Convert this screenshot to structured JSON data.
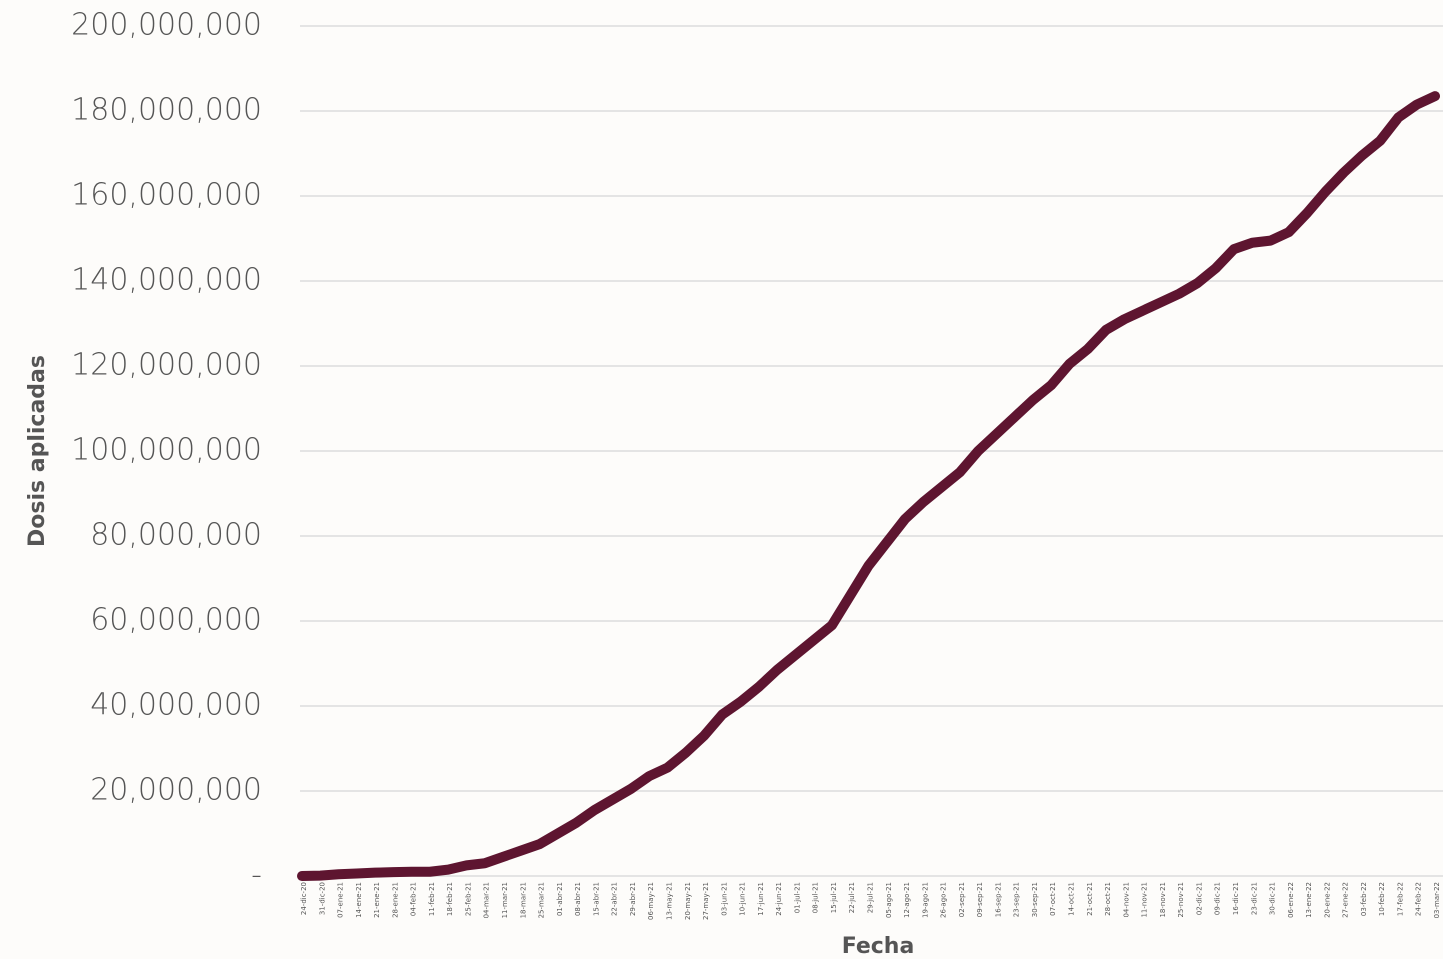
{
  "chart_data": {
    "type": "line",
    "y_axis_label": "Dosis aplicadas",
    "x_axis_label": "Fecha",
    "color": "#5e1530",
    "grid": true,
    "categories": [
      "24-dic-20",
      "31-dic-20",
      "07-ene-21",
      "14-ene-21",
      "21-ene-21",
      "28-ene-21",
      "04-feb-21",
      "11-feb-21",
      "18-feb-21",
      "25-feb-21",
      "04-mar-21",
      "11-mar-21",
      "18-mar-21",
      "25-mar-21",
      "01-abr-21",
      "08-abr-21",
      "15-abr-21",
      "22-abr-21",
      "29-abr-21",
      "06-may-21",
      "13-may-21",
      "20-may-21",
      "27-may-21",
      "03-jun-21",
      "10-jun-21",
      "17-jun-21",
      "24-jun-21",
      "01-jul-21",
      "08-jul-21",
      "15-jul-21",
      "22-jul-21",
      "29-jul-21",
      "05-ago-21",
      "12-ago-21",
      "19-ago-21",
      "26-ago-21",
      "02-sep-21",
      "09-sep-21",
      "16-sep-21",
      "23-sep-21",
      "30-sep-21",
      "07-oct-21",
      "14-oct-21",
      "21-oct-21",
      "28-oct-21",
      "04-nov-21",
      "11-nov-21",
      "18-nov-21",
      "25-nov-21",
      "02-dic-21",
      "09-dic-21",
      "16-dic-21",
      "23-dic-21",
      "30-dic-21",
      "06-ene-22",
      "13-ene-22",
      "20-ene-22",
      "27-ene-22",
      "03-feb-22",
      "10-feb-22",
      "17-feb-22",
      "24-feb-22",
      "03-mar-22"
    ],
    "values": [
      0,
      100000,
      400000,
      600000,
      800000,
      900000,
      1000000,
      1000000,
      1500000,
      2500000,
      3000000,
      4500000,
      6000000,
      7500000,
      10000000,
      12500000,
      15500000,
      18000000,
      20500000,
      23500000,
      25500000,
      29000000,
      33000000,
      38000000,
      41000000,
      44500000,
      48500000,
      52000000,
      55500000,
      59000000,
      66000000,
      73000000,
      78500000,
      84000000,
      88000000,
      91500000,
      95000000,
      100000000,
      104000000,
      108000000,
      112000000,
      115500000,
      120500000,
      124000000,
      128500000,
      131000000,
      133000000,
      135000000,
      137000000,
      139500000,
      143000000,
      147500000,
      149000000,
      149500000,
      151500000,
      156000000,
      161000000,
      165500000,
      169500000,
      173000000,
      178500000,
      181500000,
      183500000
    ],
    "ylim": [
      0,
      200000000
    ],
    "yticks": [
      {
        "value": 0,
        "label": "-"
      },
      {
        "value": 20000000,
        "label": "20,000,000"
      },
      {
        "value": 40000000,
        "label": "40,000,000"
      },
      {
        "value": 60000000,
        "label": "60,000,000"
      },
      {
        "value": 80000000,
        "label": "80,000,000"
      },
      {
        "value": 100000000,
        "label": "100,000,000"
      },
      {
        "value": 120000000,
        "label": "120,000,000"
      },
      {
        "value": 140000000,
        "label": "140,000,000"
      },
      {
        "value": 160000000,
        "label": "160,000,000"
      },
      {
        "value": 180000000,
        "label": "180,000,000"
      },
      {
        "value": 200000000,
        "label": "200,000,000"
      }
    ]
  }
}
